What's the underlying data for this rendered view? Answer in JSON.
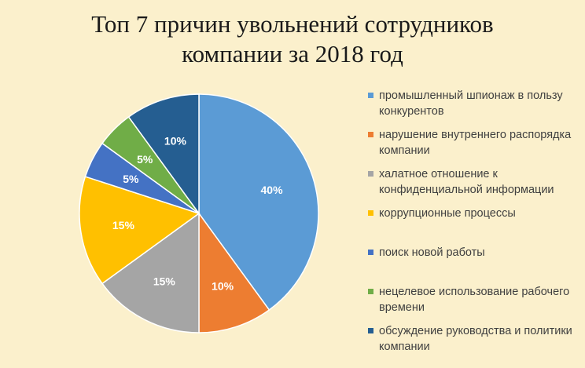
{
  "chart_data": {
    "type": "pie",
    "title_lines": [
      "Топ 7 причин увольнений сотрудников",
      "компании за 2018 год"
    ],
    "slices": [
      {
        "label": "промышленный шпионаж в пользу конкурентов",
        "value": 40,
        "display": "40%",
        "color": "#5b9bd5"
      },
      {
        "label": "нарушение внутреннего распорядка компании",
        "value": 10,
        "display": "10%",
        "color": "#ed7d31"
      },
      {
        "label": "халатное отношение к конфиденциальной информации",
        "value": 15,
        "display": "15%",
        "color": "#a5a5a5"
      },
      {
        "label": "коррупционные процессы",
        "value": 15,
        "display": "15%",
        "color": "#ffc000"
      },
      {
        "label": "поиск новой работы",
        "value": 5,
        "display": "5%",
        "color": "#4472c4"
      },
      {
        "label": "нецелевое использование рабочего времени",
        "value": 5,
        "display": "5%",
        "color": "#70ad47"
      },
      {
        "label": "обсуждение руководства и политики компании",
        "value": 10,
        "display": "10%",
        "color": "#255e91"
      }
    ],
    "legend_position": "right"
  }
}
